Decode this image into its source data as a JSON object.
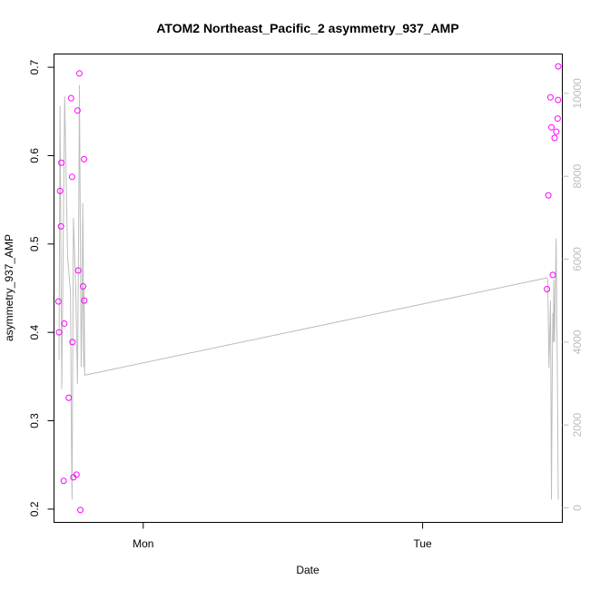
{
  "chart_data": {
    "type": "scatter",
    "title": "ATOM2 Northeast_Pacific_2 asymmetry_937_AMP",
    "xlabel": "Date",
    "ylabel": "asymmetry_937_AMP",
    "x_ticks": [
      "Mon",
      "Tue"
    ],
    "xlim": [
      "2017-01-01T16:20",
      "2017-01-03T12:00"
    ],
    "y_ticks": [
      "0.2",
      "0.3",
      "0.4",
      "0.5",
      "0.6",
      "0.7"
    ],
    "ylim": [
      0.185,
      0.715
    ],
    "y2_ticks": [
      "0",
      "2000",
      "4000",
      "6000",
      "8000",
      "10000"
    ],
    "y2lim": [
      -350,
      10950
    ],
    "grid": false,
    "legend": "none",
    "colors": {
      "points": "#ff00ff",
      "line": "#bdbdbd",
      "axis": "#000000",
      "right_axis": "#bdbdbd"
    },
    "series": [
      {
        "type": "scatter",
        "axis": "left",
        "x": [
          "2017-01-01T16:43",
          "2017-01-01T16:46",
          "2017-01-01T16:51",
          "2017-01-01T16:56",
          "2017-01-01T16:58",
          "2017-01-01T17:10",
          "2017-01-01T17:13",
          "2017-01-01T17:36",
          "2017-01-01T17:48",
          "2017-01-01T17:53",
          "2017-01-01T17:55",
          "2017-01-01T18:00",
          "2017-01-01T18:16",
          "2017-01-01T18:21",
          "2017-01-01T18:25",
          "2017-01-01T18:31",
          "2017-01-01T18:36",
          "2017-01-01T18:50",
          "2017-01-01T18:55",
          "2017-01-01T18:56",
          "2017-01-03T10:41",
          "2017-01-03T10:48",
          "2017-01-03T10:59",
          "2017-01-03T11:04",
          "2017-01-03T11:11",
          "2017-01-03T11:20",
          "2017-01-03T11:29",
          "2017-01-03T11:36",
          "2017-01-03T11:38",
          "2017-01-03T11:39"
        ],
        "y": [
          0.435,
          0.4,
          0.56,
          0.52,
          0.592,
          0.232,
          0.41,
          0.326,
          0.665,
          0.576,
          0.389,
          0.236,
          0.239,
          0.651,
          0.47,
          0.693,
          0.199,
          0.452,
          0.596,
          0.436,
          0.449,
          0.555,
          0.666,
          0.632,
          0.465,
          0.62,
          0.627,
          0.642,
          0.663,
          0.701
        ]
      },
      {
        "type": "line",
        "axis": "right",
        "x": [
          "2017-01-01T16:46",
          "2017-01-01T16:51",
          "2017-01-01T17:00",
          "2017-01-01T17:15",
          "2017-01-01T17:30",
          "2017-01-01T17:45",
          "2017-01-01T17:50",
          "2017-01-01T17:53",
          "2017-01-01T18:00",
          "2017-01-01T18:12",
          "2017-01-01T18:21",
          "2017-01-01T18:25",
          "2017-01-01T18:28",
          "2017-01-01T18:31",
          "2017-01-01T18:40",
          "2017-01-01T18:45",
          "2017-01-01T18:48",
          "2017-01-01T18:50",
          "2017-01-01T18:53",
          "2017-01-01T18:55",
          "2017-01-01T18:58",
          "2017-01-03T10:41",
          "2017-01-03T10:45",
          "2017-01-03T10:51",
          "2017-01-03T10:59",
          "2017-01-03T11:04",
          "2017-01-03T11:08",
          "2017-01-03T11:11",
          "2017-01-03T11:14",
          "2017-01-03T11:16",
          "2017-01-03T11:20",
          "2017-01-03T11:28",
          "2017-01-03T11:35",
          "2017-01-03T11:39"
        ],
        "y": [
          3570,
          9700,
          2870,
          9930,
          6060,
          5200,
          1550,
          200,
          7000,
          5300,
          2990,
          5500,
          7500,
          10200,
          3400,
          5000,
          7350,
          6590,
          3400,
          5320,
          3200,
          5550,
          5500,
          3380,
          5000,
          200,
          3250,
          4700,
          4000,
          5500,
          4000,
          6500,
          2990,
          200
        ]
      }
    ]
  }
}
